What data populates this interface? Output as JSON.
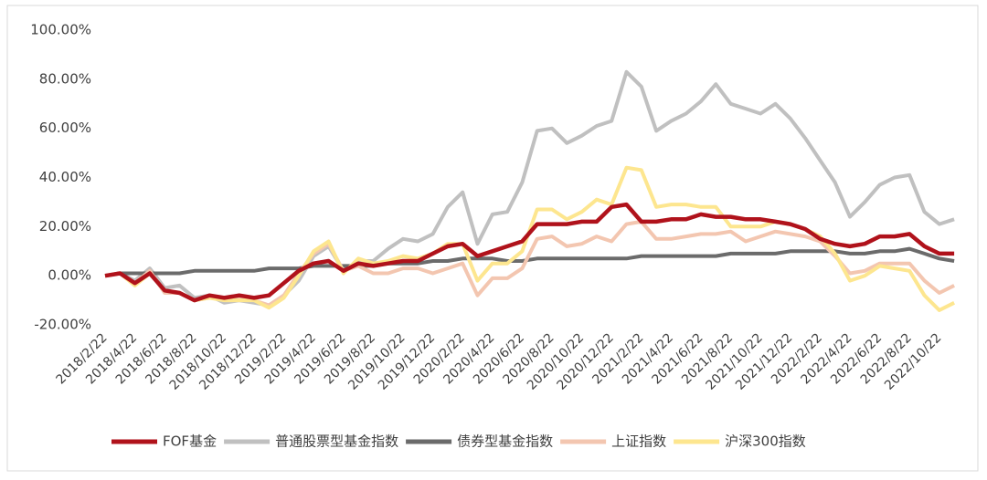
{
  "chart_data": {
    "type": "line",
    "categories": [
      "2018/2/22",
      null,
      "2018/4/22",
      null,
      "2018/6/22",
      null,
      "2018/8/22",
      null,
      "2018/10/22",
      null,
      "2018/12/22",
      null,
      "2019/2/22",
      null,
      "2019/4/22",
      null,
      "2019/6/22",
      null,
      "2019/8/22",
      null,
      "2019/10/22",
      null,
      "2019/12/22",
      null,
      "2020/2/22",
      null,
      "2020/4/22",
      null,
      "2020/6/22",
      null,
      "2020/8/22",
      null,
      "2020/10/22",
      null,
      "2020/12/22",
      null,
      "2021/2/22",
      null,
      "2021/4/22",
      null,
      "2021/6/22",
      null,
      "2021/8/22",
      null,
      "2021/10/22",
      null,
      "2021/12/22",
      null,
      "2022/2/22",
      null,
      "2022/4/22",
      null,
      "2022/6/22",
      null,
      "2022/8/22",
      null,
      "2022/10/22",
      null
    ],
    "series": [
      {
        "name": "FOF基金",
        "color": "#b0121b",
        "values": [
          0,
          1,
          -3,
          1,
          -6,
          -7,
          -10,
          -8,
          -9,
          -8,
          -9,
          -8,
          -3,
          2,
          5,
          6,
          2,
          5,
          4,
          5,
          6,
          6,
          9,
          12,
          13,
          8,
          10,
          12,
          14,
          21,
          21,
          21,
          22,
          22,
          28,
          29,
          22,
          22,
          23,
          23,
          25,
          24,
          24,
          23,
          23,
          22,
          21,
          19,
          15,
          13,
          12,
          13,
          16,
          16,
          17,
          12,
          9,
          9
        ]
      },
      {
        "name": "普通股票型基金指数",
        "color": "#c0c0c0",
        "values": [
          0,
          1,
          -2,
          3,
          -5,
          -4,
          -9,
          -8,
          -11,
          -10,
          -11,
          -12,
          -8,
          -2,
          8,
          12,
          2,
          6,
          6,
          11,
          15,
          14,
          17,
          28,
          34,
          13,
          25,
          26,
          38,
          59,
          60,
          54,
          57,
          61,
          63,
          83,
          77,
          59,
          63,
          66,
          71,
          78,
          70,
          68,
          66,
          70,
          64,
          56,
          47,
          38,
          24,
          30,
          37,
          40,
          41,
          26,
          21,
          23
        ]
      },
      {
        "name": "债券型基金指数",
        "color": "#6b6b6b",
        "values": [
          0,
          1,
          1,
          1,
          1,
          1,
          2,
          2,
          2,
          2,
          2,
          3,
          3,
          3,
          4,
          4,
          4,
          4,
          4,
          5,
          5,
          5,
          6,
          6,
          7,
          7,
          7,
          6,
          6,
          7,
          7,
          7,
          7,
          7,
          7,
          7,
          8,
          8,
          8,
          8,
          8,
          8,
          9,
          9,
          9,
          9,
          10,
          10,
          10,
          10,
          9,
          9,
          10,
          10,
          11,
          9,
          7,
          6
        ]
      },
      {
        "name": "上证指数",
        "color": "#f3c6b0",
        "values": [
          0,
          1,
          -3,
          2,
          -7,
          -7,
          -10,
          -9,
          -9,
          -9,
          -10,
          -12,
          -8,
          1,
          9,
          13,
          2,
          4,
          1,
          1,
          3,
          3,
          1,
          3,
          5,
          -8,
          -1,
          -1,
          3,
          15,
          16,
          12,
          13,
          16,
          14,
          21,
          22,
          15,
          15,
          16,
          17,
          17,
          18,
          14,
          16,
          18,
          17,
          16,
          14,
          8,
          1,
          2,
          5,
          5,
          5,
          -2,
          -7,
          -4
        ]
      },
      {
        "name": "沪深300指数",
        "color": "#fde68f",
        "values": [
          0,
          1,
          -4,
          1,
          -6,
          -7,
          -10,
          -9,
          -10,
          -10,
          -10,
          -13,
          -9,
          0,
          10,
          14,
          1,
          7,
          5,
          6,
          8,
          7,
          9,
          13,
          13,
          -2,
          5,
          5,
          10,
          27,
          27,
          23,
          26,
          31,
          29,
          44,
          43,
          28,
          29,
          29,
          28,
          28,
          20,
          20,
          20,
          22,
          21,
          19,
          16,
          9,
          -2,
          0,
          4,
          3,
          2,
          -8,
          -14,
          -11
        ]
      }
    ],
    "ylim": [
      -20,
      100
    ],
    "yticks": [
      {
        "value": -20,
        "label": "-20.00%"
      },
      {
        "value": 0,
        "label": "0.00%"
      },
      {
        "value": 20,
        "label": "20.00%"
      },
      {
        "value": 40,
        "label": "40.00%"
      },
      {
        "value": 60,
        "label": "60.00%"
      },
      {
        "value": 80,
        "label": "80.00%"
      },
      {
        "value": 100,
        "label": "100.00%"
      }
    ],
    "grid": false
  }
}
